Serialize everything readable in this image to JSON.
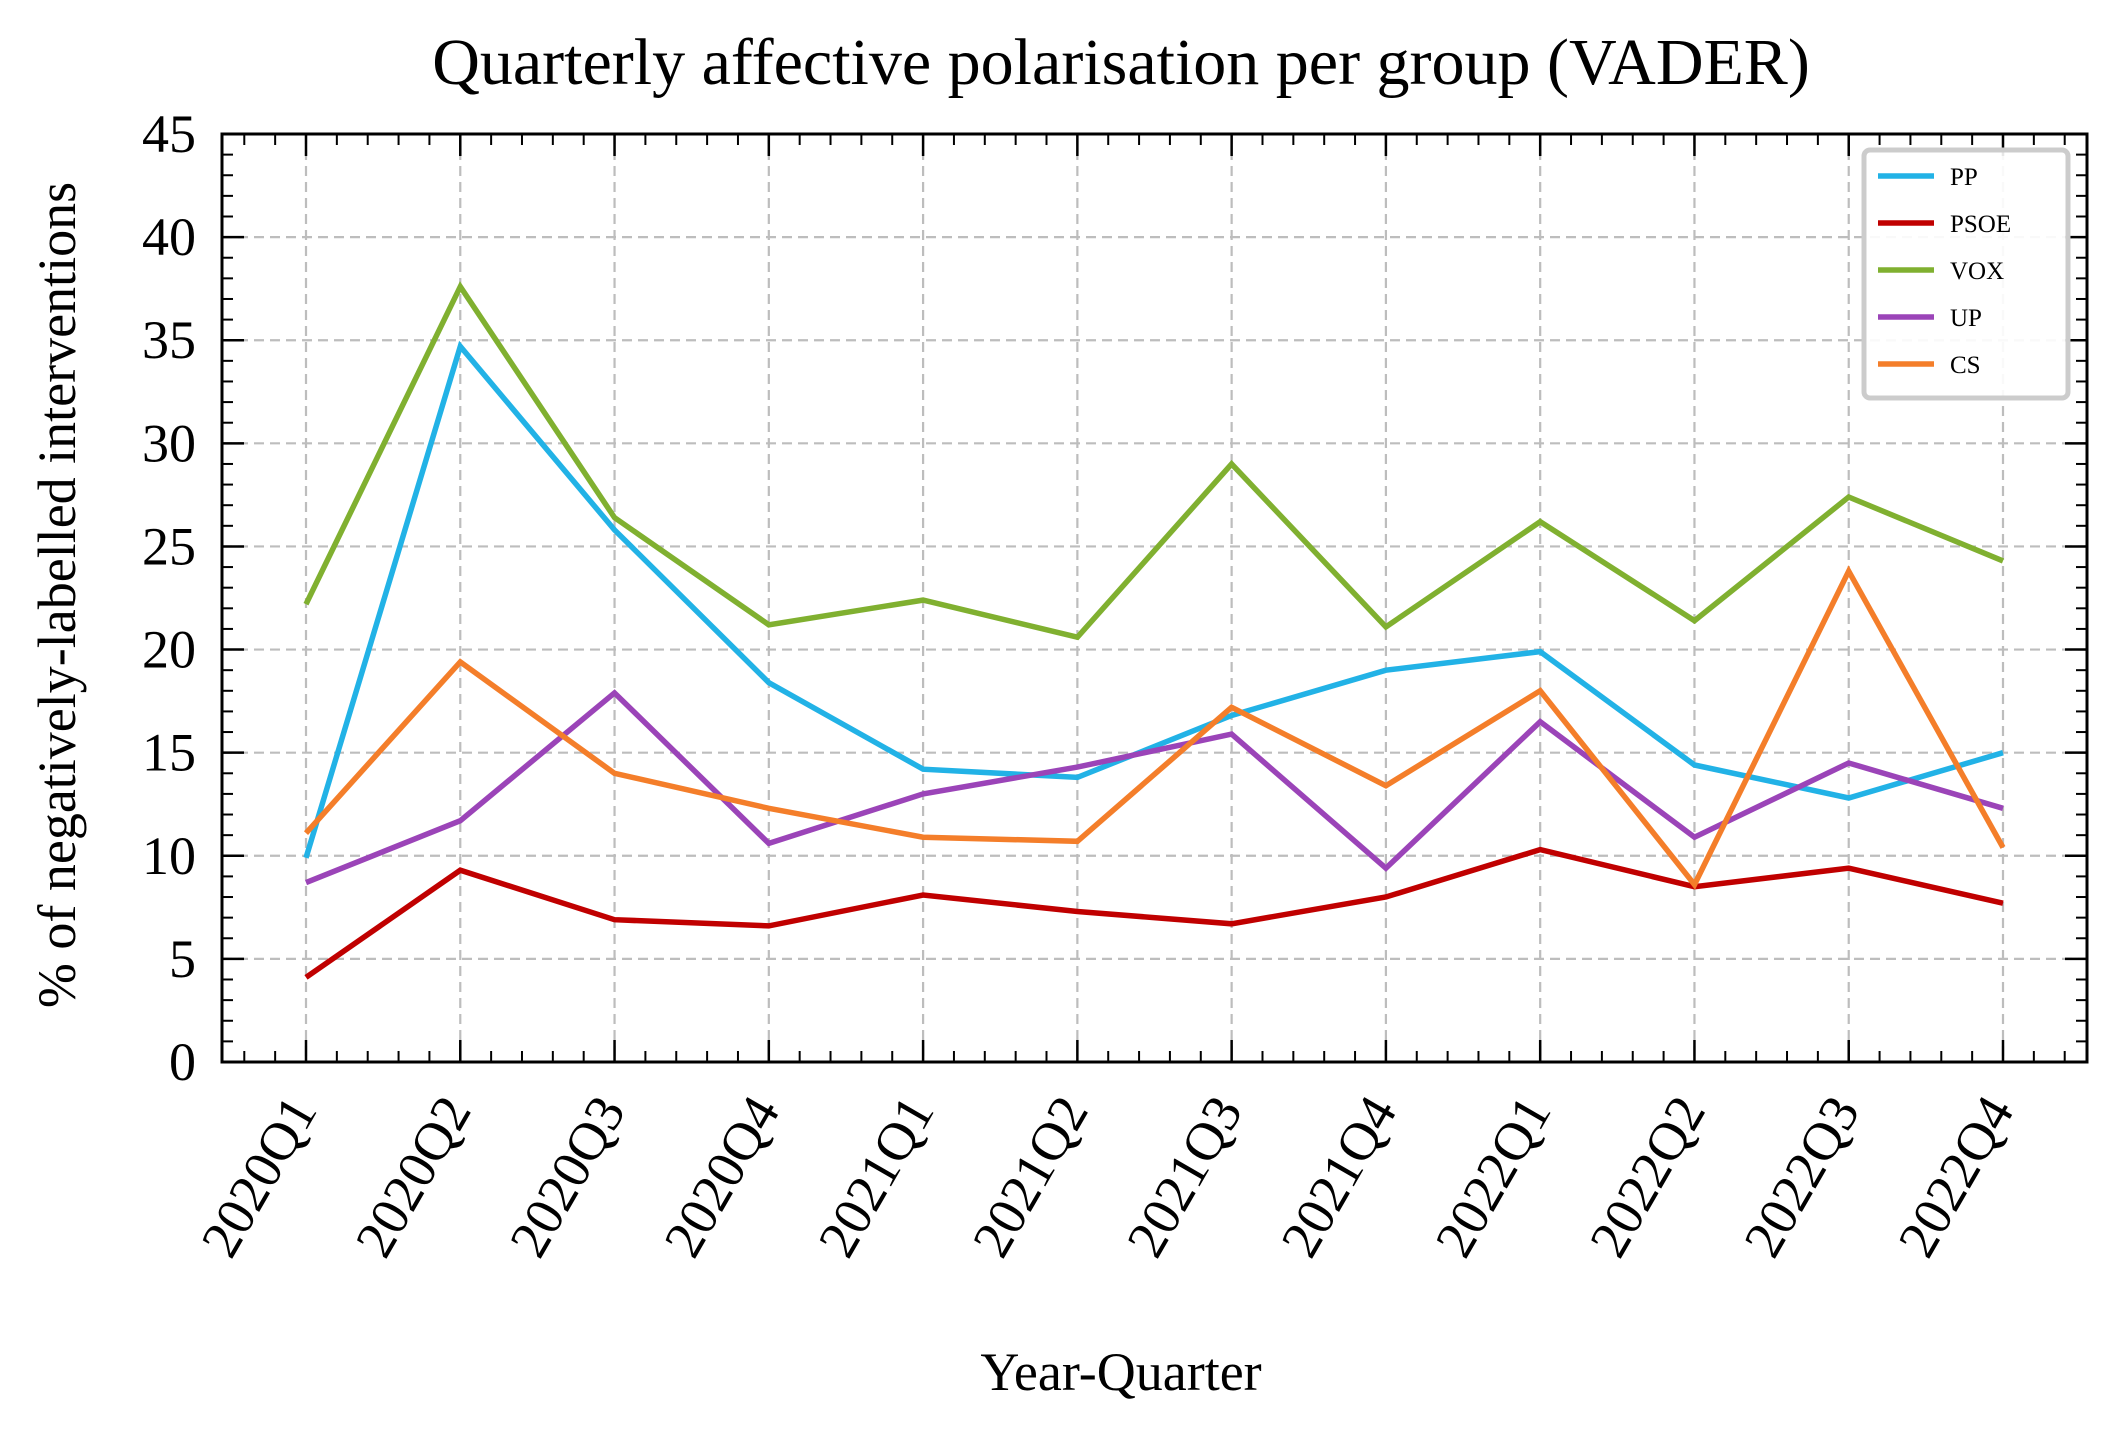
{
  "chart_data": {
    "type": "line",
    "title": "Quarterly affective polarisation per group (VADER)",
    "xlabel": "Year-Quarter",
    "ylabel": "% of negatively-labelled interventions",
    "categories": [
      "2020Q1",
      "2020Q2",
      "2020Q3",
      "2020Q4",
      "2021Q1",
      "2021Q2",
      "2021Q3",
      "2021Q4",
      "2022Q1",
      "2022Q2",
      "2022Q3",
      "2022Q4"
    ],
    "ylim": [
      0,
      45
    ],
    "yticks": [
      0,
      5,
      10,
      15,
      20,
      25,
      30,
      35,
      40,
      45
    ],
    "grid": true,
    "legend_position": "top-right",
    "series": [
      {
        "name": "PP",
        "color": "#22b2e6",
        "values": [
          9.9,
          34.7,
          25.8,
          18.4,
          14.2,
          13.8,
          16.8,
          19.0,
          19.9,
          14.4,
          12.8,
          15.0
        ]
      },
      {
        "name": "PSOE",
        "color": "#c00000",
        "values": [
          4.1,
          9.3,
          6.9,
          6.6,
          8.1,
          7.3,
          6.7,
          8.0,
          10.3,
          8.5,
          9.4,
          7.7
        ]
      },
      {
        "name": "VOX",
        "color": "#80b030",
        "values": [
          22.2,
          37.6,
          26.4,
          21.2,
          22.4,
          20.6,
          29.0,
          21.1,
          26.2,
          21.4,
          27.4,
          24.3
        ]
      },
      {
        "name": "UP",
        "color": "#9b44b8",
        "values": [
          8.7,
          11.7,
          17.9,
          10.6,
          13.0,
          14.3,
          15.9,
          9.4,
          16.5,
          10.9,
          14.5,
          12.3
        ]
      },
      {
        "name": "CS",
        "color": "#f47e2a",
        "values": [
          11.1,
          19.4,
          14.0,
          12.3,
          10.9,
          10.7,
          17.2,
          13.4,
          18.0,
          8.6,
          23.8,
          10.4
        ]
      }
    ]
  }
}
